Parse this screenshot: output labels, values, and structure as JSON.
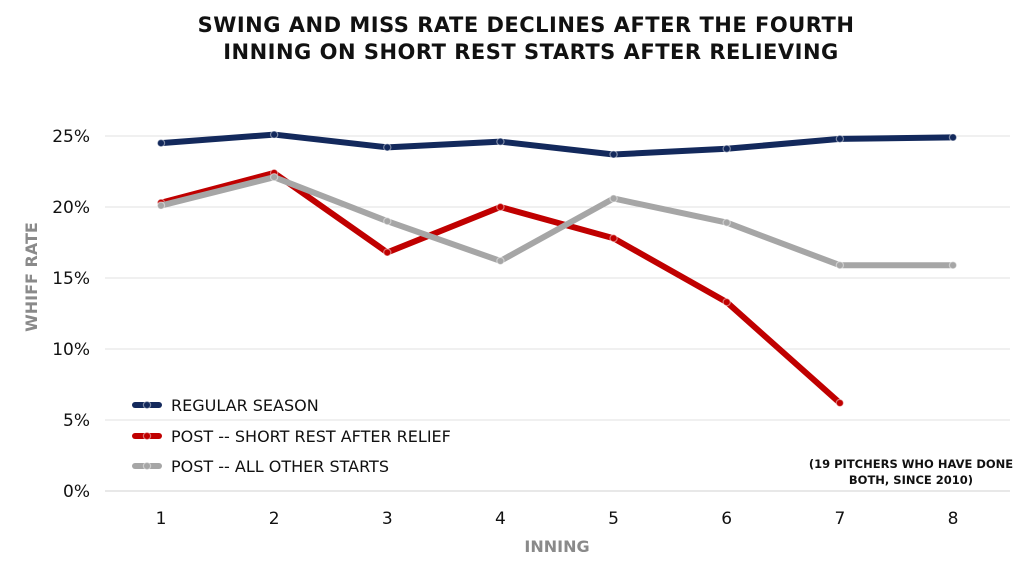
{
  "chart_data": {
    "type": "line",
    "title_lines": [
      "SWING AND MISS RATE DECLINES AFTER THE FOURTH",
      "INNING ON SHORT REST STARTS AFTER RELIEVING"
    ],
    "xlabel": "INNING",
    "ylabel": "WHIFF RATE",
    "x": [
      1,
      2,
      3,
      4,
      5,
      6,
      7,
      8
    ],
    "x_tick_labels": [
      "1",
      "2",
      "3",
      "4",
      "5",
      "6",
      "7",
      "8"
    ],
    "ylim": [
      0,
      25
    ],
    "y_ticks": [
      0,
      5,
      10,
      15,
      20,
      25
    ],
    "y_tick_labels": [
      "0%",
      "5%",
      "10%",
      "15%",
      "20%",
      "25%"
    ],
    "grid": true,
    "legend_position": "bottom-left",
    "series": [
      {
        "name": "REGULAR SEASON",
        "color": "#13295c",
        "values": [
          24.5,
          25.1,
          24.2,
          24.6,
          23.7,
          24.1,
          24.8,
          24.9
        ]
      },
      {
        "name": "POST -- SHORT REST AFTER RELIEF",
        "color": "#c00000",
        "values": [
          20.3,
          22.4,
          16.8,
          20.0,
          17.8,
          13.3,
          6.2,
          null
        ]
      },
      {
        "name": "POST -- ALL OTHER STARTS",
        "color": "#a6a6a6",
        "values": [
          20.1,
          22.1,
          19.0,
          16.2,
          20.6,
          18.9,
          15.9,
          15.9
        ]
      }
    ],
    "annotation_lines": [
      "(19 PITCHERS WHO HAVE DONE",
      "BOTH, SINCE 2010)"
    ]
  }
}
